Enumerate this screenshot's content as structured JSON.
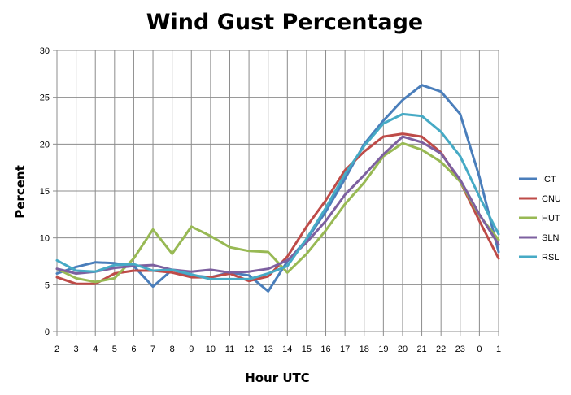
{
  "chart_data": {
    "type": "line",
    "title": "Wind Gust Percentage",
    "xlabel": "Hour UTC",
    "ylabel": "Percent",
    "categories": [
      "2",
      "3",
      "4",
      "5",
      "6",
      "7",
      "8",
      "9",
      "10",
      "11",
      "12",
      "13",
      "14",
      "15",
      "16",
      "17",
      "18",
      "19",
      "20",
      "21",
      "22",
      "23",
      "0",
      "1"
    ],
    "ylim": [
      0,
      30
    ],
    "yticks": [
      0,
      5,
      10,
      15,
      20,
      25,
      30
    ],
    "grid": true,
    "legend_position": "right",
    "series": [
      {
        "name": "ICT",
        "color": "#4a7ebb",
        "values": [
          6.2,
          6.9,
          7.4,
          7.3,
          7.0,
          4.8,
          6.6,
          6.0,
          5.8,
          6.3,
          6.0,
          4.3,
          7.5,
          9.8,
          12.8,
          16.3,
          20.0,
          22.5,
          24.7,
          26.3,
          25.6,
          23.2,
          16.5,
          8.5
        ]
      },
      {
        "name": "CNU",
        "color": "#be4b48",
        "values": [
          5.8,
          5.1,
          5.1,
          6.2,
          6.5,
          6.5,
          6.3,
          5.8,
          5.8,
          6.2,
          5.4,
          5.9,
          8.0,
          11.2,
          14.0,
          17.2,
          19.2,
          20.8,
          21.1,
          20.8,
          19.1,
          16.0,
          11.8,
          7.8
        ]
      },
      {
        "name": "HUT",
        "color": "#98b954",
        "values": [
          6.7,
          5.7,
          5.3,
          5.7,
          7.8,
          10.9,
          8.3,
          11.2,
          10.2,
          9.0,
          8.6,
          8.5,
          6.3,
          8.3,
          10.8,
          13.6,
          15.9,
          18.7,
          20.1,
          19.4,
          18.1,
          16.0,
          12.4,
          9.8
        ]
      },
      {
        "name": "SLN",
        "color": "#7d60a0",
        "values": [
          6.7,
          6.2,
          6.4,
          6.8,
          7.0,
          7.1,
          6.6,
          6.4,
          6.6,
          6.3,
          6.4,
          6.7,
          7.6,
          9.5,
          11.8,
          14.6,
          16.7,
          18.9,
          20.8,
          20.2,
          19.0,
          16.2,
          12.5,
          9.3
        ]
      },
      {
        "name": "RSL",
        "color": "#46aac5",
        "values": [
          7.6,
          6.5,
          6.4,
          7.1,
          7.2,
          6.5,
          6.6,
          6.1,
          5.6,
          5.6,
          5.6,
          6.2,
          7.0,
          9.9,
          13.2,
          16.8,
          19.8,
          22.2,
          23.2,
          23.0,
          21.3,
          18.7,
          14.4,
          10.4
        ]
      }
    ]
  }
}
